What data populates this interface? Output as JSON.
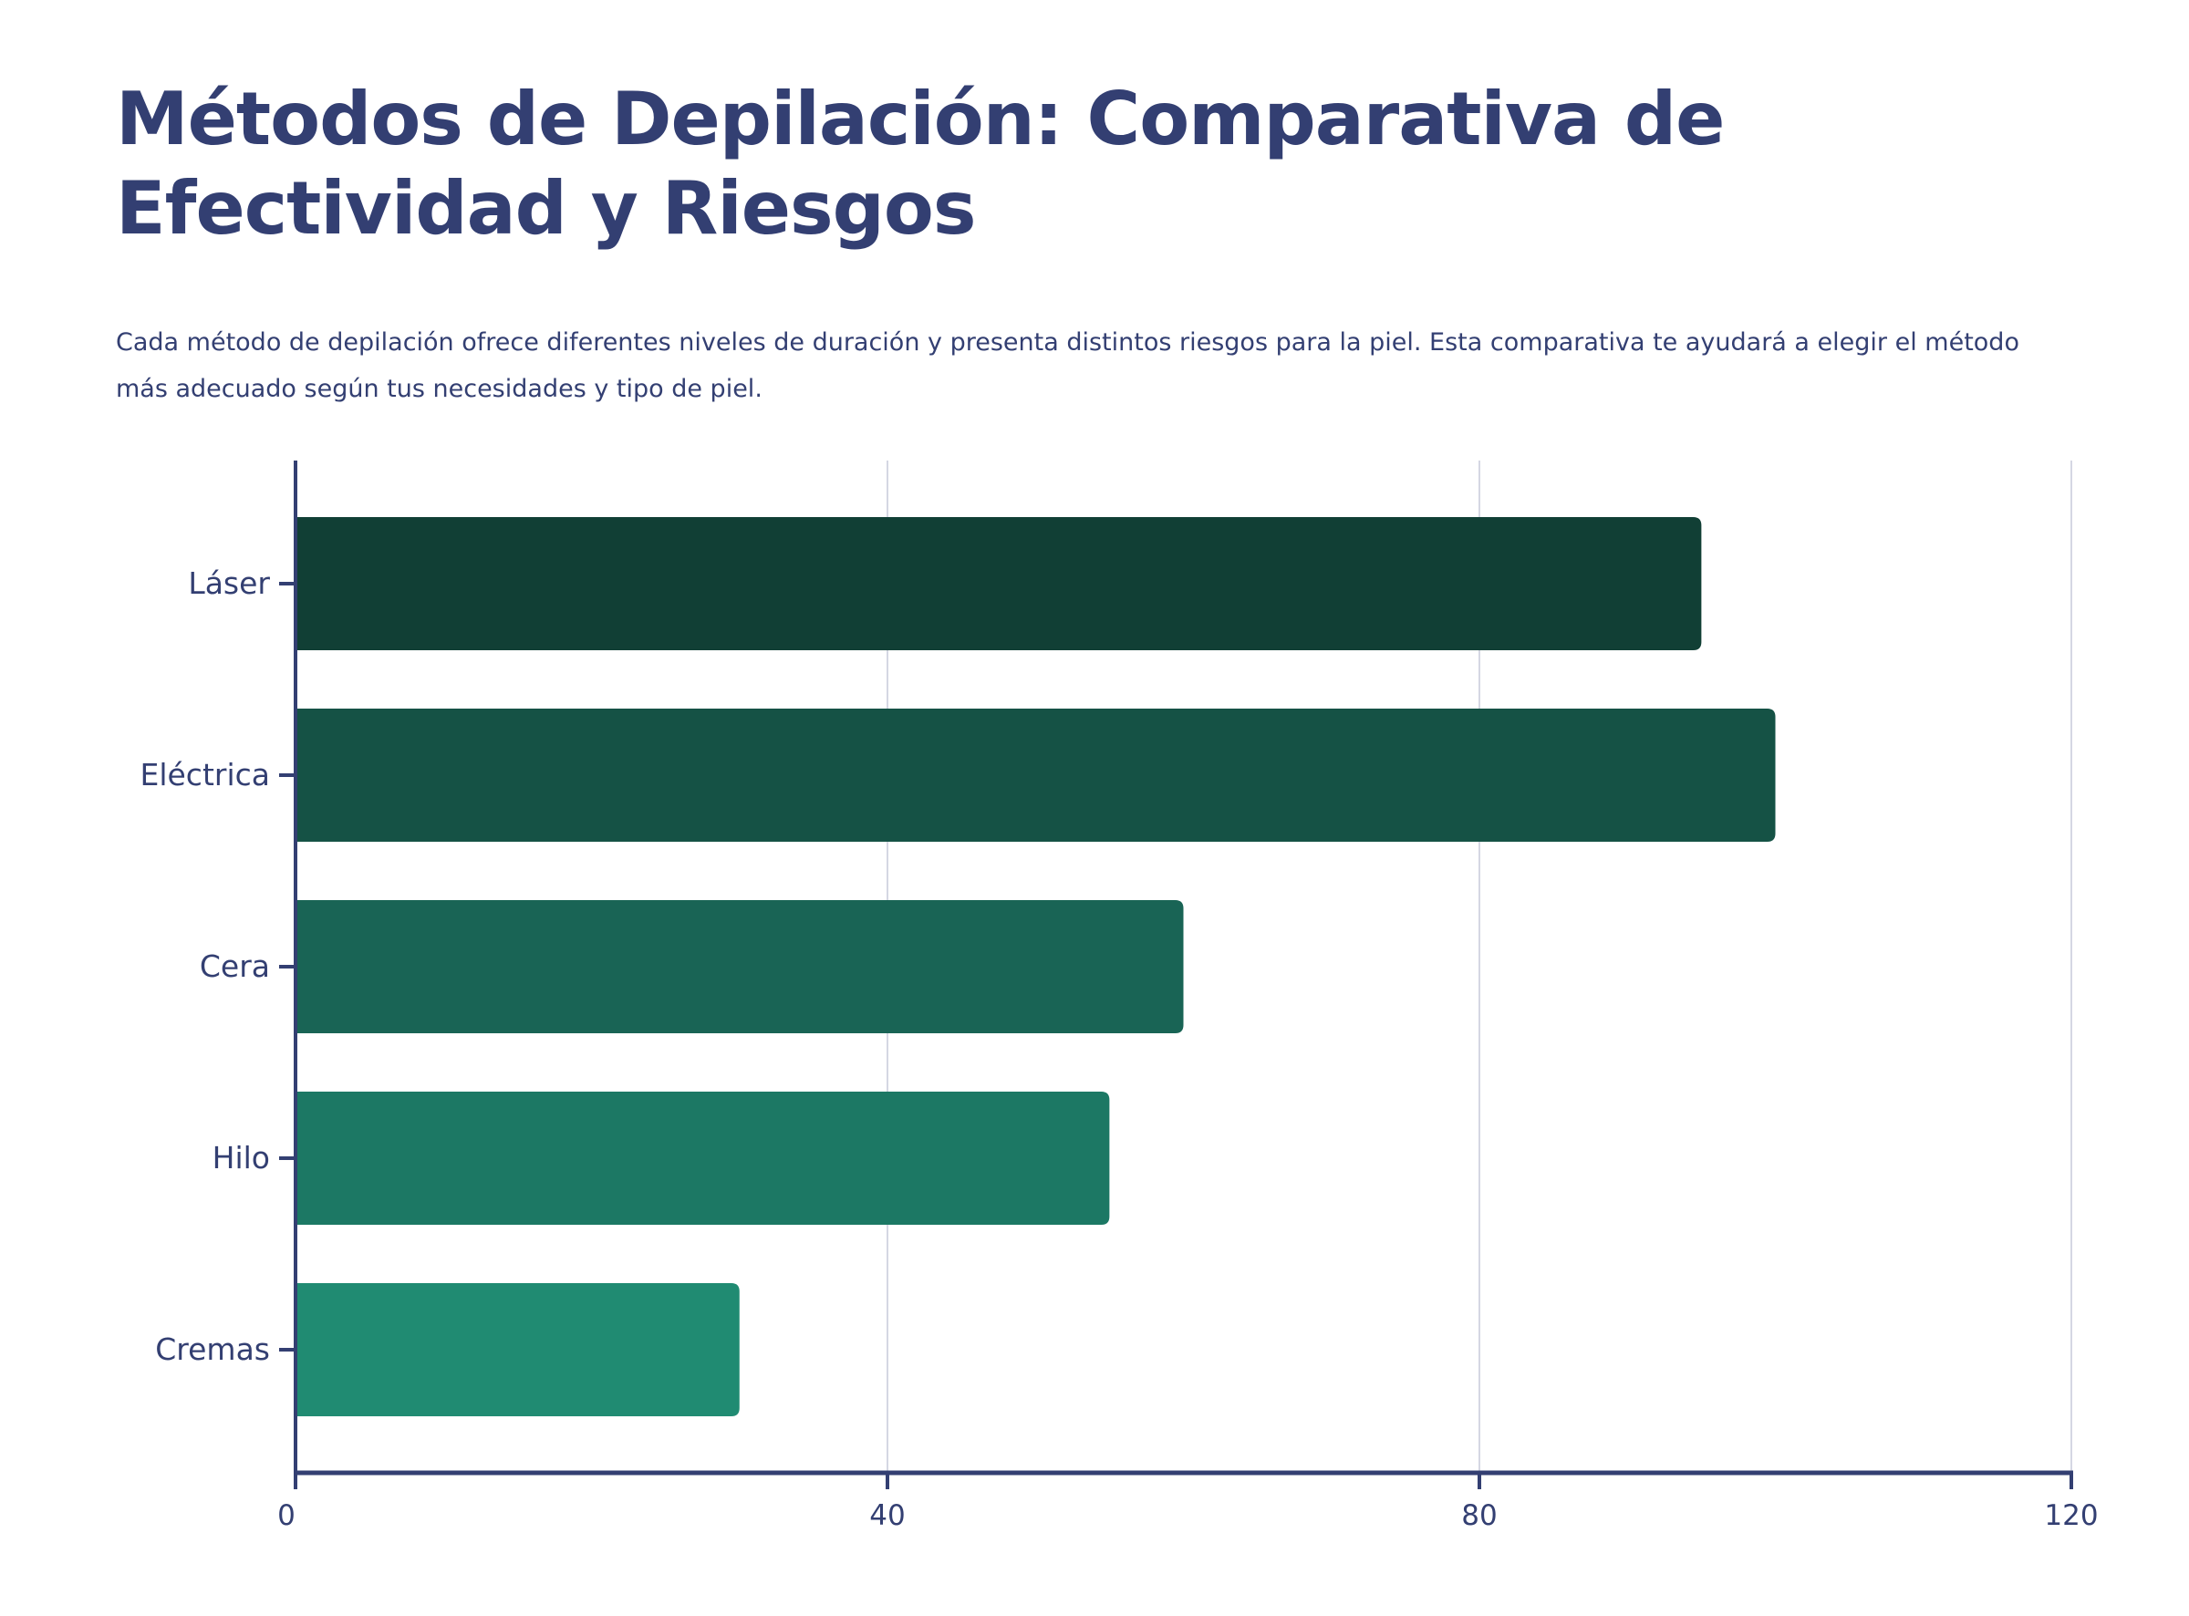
{
  "chart_data": {
    "type": "bar",
    "orientation": "horizontal",
    "title": "Métodos de Depilación: Comparativa de Efectividad y Riesgos",
    "subtitle": "Cada método de depilación ofrece diferentes niveles de duración y presenta distintos riesgos para la piel. Esta comparativa te ayudará a elegir el método más adecuado según tus necesidades y tipo de piel.",
    "categories": [
      "Láser",
      "Eléctrica",
      "Cera",
      "Hilo",
      "Cremas"
    ],
    "values": [
      95,
      100,
      60,
      55,
      30
    ],
    "colors": [
      "#113f35",
      "#155245",
      "#196455",
      "#1c7864",
      "#208b72"
    ],
    "xlim": [
      0,
      120
    ],
    "xticks": [
      "0",
      "40",
      "80",
      "120"
    ],
    "xtick_values": [
      0,
      40,
      80,
      120
    ],
    "xlabel": "",
    "ylabel": "",
    "grid": "vertical",
    "legend": "none"
  }
}
